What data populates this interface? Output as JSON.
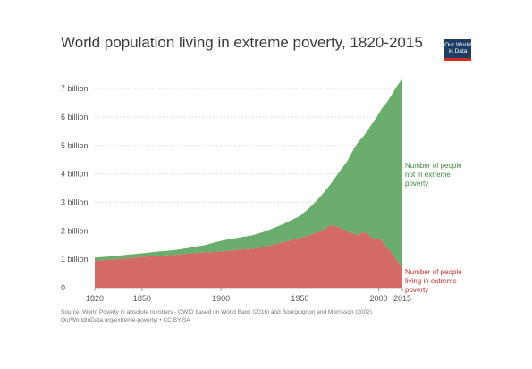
{
  "title": "World population living in extreme poverty, 1820-2015",
  "logo": {
    "line1": "Our World",
    "line2": "in Data"
  },
  "source": {
    "line1": "Source: World Poverty in absolute numbers - OWID based on World Bank (2016) and Bourguignon and Morrisson (2002)",
    "line2": "OurWorldInData.org/extreme-poverty/ • CC BY-SA"
  },
  "colors": {
    "not_poor": "#6aad6c",
    "poor": "#d36a66",
    "not_poor_text": "#3d8a3f",
    "poor_text": "#c0322f"
  },
  "chart_data": {
    "type": "area",
    "stacked": true,
    "title": "World population living in extreme poverty, 1820-2015",
    "xlim": [
      1820,
      2015
    ],
    "ylim": [
      0,
      7.6
    ],
    "y_unit": "billion",
    "x_ticks": [
      1820,
      1850,
      1900,
      1950,
      2000,
      2015
    ],
    "y_ticks": [
      {
        "value": 0,
        "label": "0"
      },
      {
        "value": 1,
        "label": "1 billion"
      },
      {
        "value": 2,
        "label": "2 billion"
      },
      {
        "value": 3,
        "label": "3 billion"
      },
      {
        "value": 4,
        "label": "4 billion"
      },
      {
        "value": 5,
        "label": "5 billion"
      },
      {
        "value": 6,
        "label": "6 billion"
      },
      {
        "value": 7,
        "label": "7 billion"
      }
    ],
    "grid": true,
    "legend": "inline-right",
    "x": [
      1820,
      1830,
      1840,
      1850,
      1860,
      1870,
      1880,
      1890,
      1900,
      1910,
      1920,
      1929,
      1940,
      1950,
      1955,
      1960,
      1965,
      1970,
      1975,
      1980,
      1984,
      1987,
      1990,
      1993,
      1996,
      1999,
      2002,
      2005,
      2008,
      2011,
      2015
    ],
    "series": [
      {
        "name": "Number of people living in extreme poverty",
        "values": [
          0.95,
          0.98,
          1.03,
          1.08,
          1.12,
          1.15,
          1.2,
          1.24,
          1.27,
          1.33,
          1.37,
          1.45,
          1.6,
          1.75,
          1.82,
          1.92,
          2.05,
          2.2,
          2.12,
          1.98,
          1.9,
          1.85,
          1.95,
          1.9,
          1.73,
          1.75,
          1.66,
          1.4,
          1.25,
          1.0,
          0.7
        ]
      },
      {
        "name": "Number of people not in extreme poverty",
        "values": [
          0.11,
          0.12,
          0.13,
          0.13,
          0.15,
          0.17,
          0.2,
          0.26,
          0.38,
          0.42,
          0.47,
          0.55,
          0.65,
          0.77,
          0.93,
          1.1,
          1.28,
          1.48,
          1.95,
          2.46,
          2.96,
          3.27,
          3.35,
          3.63,
          4.05,
          4.27,
          4.64,
          5.1,
          5.51,
          6.04,
          6.65
        ]
      }
    ],
    "series_labels": {
      "not_poor": [
        "Number of people",
        "not in extreme",
        "poverty"
      ],
      "poor": [
        "Number of people",
        "living in extreme",
        "poverty"
      ]
    }
  }
}
